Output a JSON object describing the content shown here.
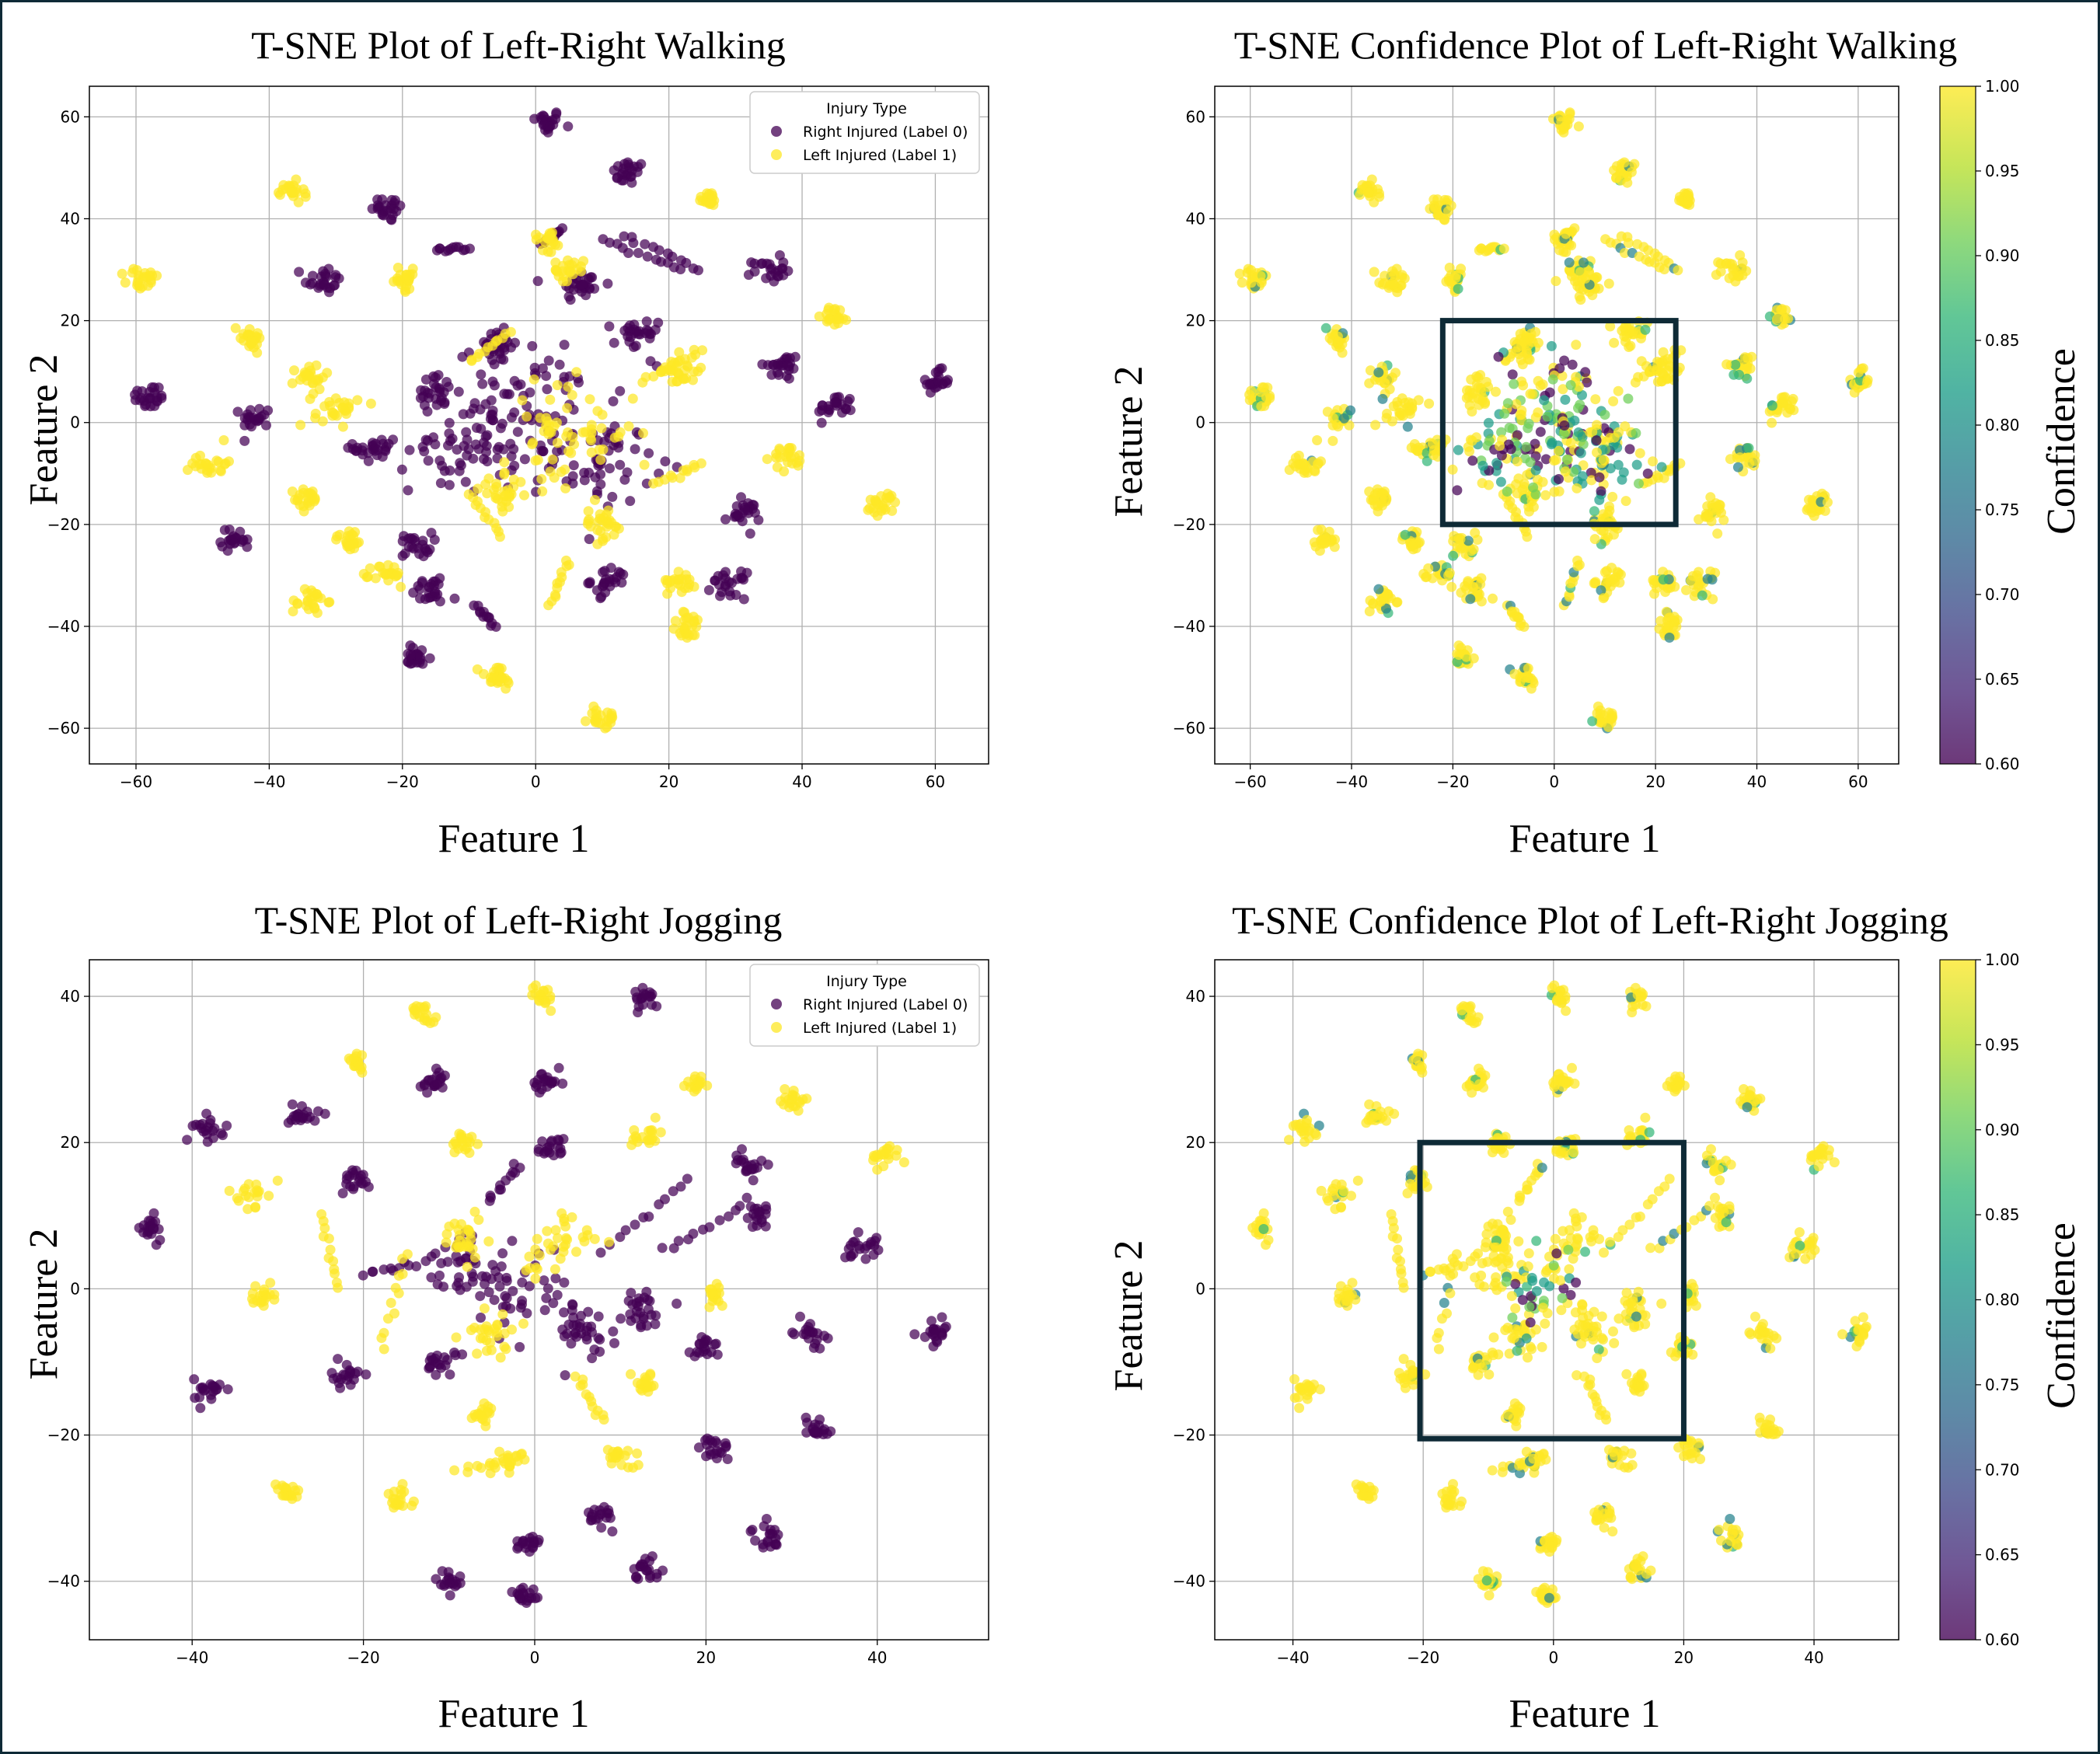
{
  "chart_data": [
    {
      "type": "scatter",
      "title": "T-SNE Plot of Left-Right Walking",
      "xlabel": "Feature 1",
      "ylabel": "Feature 2",
      "xlim": [
        -67,
        68
      ],
      "ylim": [
        -67,
        66
      ],
      "xticks": [
        -60,
        -40,
        -20,
        0,
        20,
        40,
        60
      ],
      "yticks": [
        -60,
        -40,
        -20,
        0,
        20,
        40,
        60
      ],
      "grid": true,
      "legend": {
        "title": "Injury Type",
        "placement": "top-right",
        "entries": [
          {
            "label": "Right Injured (Label 0)",
            "color": "#440154"
          },
          {
            "label": "Left Injured (Label 1)",
            "color": "#fde725"
          }
        ]
      },
      "series": [
        {
          "label_index": 0,
          "clusters": [
            [
              1.5,
              59,
              2.2
            ],
            [
              14,
              49,
              2.2
            ],
            [
              -22,
              42,
              2.4
            ],
            [
              -32,
              28,
              2.5
            ],
            [
              7,
              27,
              3
            ],
            [
              37,
              11,
              2.5
            ],
            [
              -58,
              5,
              2.4
            ],
            [
              -42,
              1,
              2
            ],
            [
              45,
              3,
              2.4
            ],
            [
              60,
              8,
              2
            ],
            [
              35,
              30,
              2.2
            ],
            [
              -24,
              -5,
              3
            ],
            [
              -15,
              6,
              3
            ],
            [
              -45,
              -23,
              2
            ],
            [
              -18,
              -24,
              2.2
            ],
            [
              31,
              -18,
              2.4
            ],
            [
              -16,
              -33,
              2.5
            ],
            [
              11,
              -31,
              2.5
            ],
            [
              29,
              -32,
              2.3
            ],
            [
              -18,
              -46,
              2.2
            ],
            [
              0,
              3,
              11
            ],
            [
              -10,
              -5,
              8
            ],
            [
              10,
              -8,
              7
            ],
            [
              15,
              17,
              3
            ],
            [
              -6,
              15,
              3
            ]
          ],
          "arcs": [
            [
              [
                -15,
                34
              ],
              [
                -10,
                34
              ]
            ],
            [
              [
                10,
                36
              ],
              [
                22,
                30
              ]
            ],
            [
              [
                13,
                37
              ],
              [
                25,
                30
              ]
            ],
            [
              [
                -9,
                -36
              ],
              [
                -6,
                -40
              ]
            ],
            [
              [
                1,
                35
              ],
              [
                4,
                38
              ]
            ]
          ]
        },
        {
          "label_index": 1,
          "clusters": [
            [
              -37,
              45,
              2
            ],
            [
              -59,
              28,
              2.2
            ],
            [
              -43,
              17,
              2.3
            ],
            [
              -34,
              9,
              2.2
            ],
            [
              -49,
              -8,
              2.4
            ],
            [
              -34,
              -15,
              2
            ],
            [
              -28,
              -23,
              2
            ],
            [
              -34,
              -35,
              2.4
            ],
            [
              -22,
              -30,
              2.2
            ],
            [
              10,
              -58,
              2
            ],
            [
              -6,
              -50,
              2.5
            ],
            [
              23,
              -40,
              2.5
            ],
            [
              45,
              21,
              1.8
            ],
            [
              38,
              -7,
              2.2
            ],
            [
              52,
              -16,
              2.2
            ],
            [
              26,
              44,
              1.5
            ],
            [
              22,
              -31,
              2
            ],
            [
              -20,
              28,
              2
            ],
            [
              2,
              36,
              2
            ],
            [
              5,
              30,
              2
            ],
            [
              -30,
              3,
              3
            ],
            [
              22,
              10,
              3
            ],
            [
              5,
              -2,
              9
            ],
            [
              -5,
              -14,
              3
            ],
            [
              10,
              -20,
              3
            ]
          ],
          "arcs": [
            [
              [
                2,
                -36
              ],
              [
                5,
                -27
              ]
            ],
            [
              [
                -10,
                -14
              ],
              [
                -5,
                -22
              ]
            ],
            [
              [
                16,
                8
              ],
              [
                25,
                14
              ]
            ],
            [
              [
                -10,
                12
              ],
              [
                -4,
                18
              ]
            ],
            [
              [
                18,
                -12
              ],
              [
                25,
                -8
              ]
            ]
          ]
        }
      ]
    },
    {
      "type": "scatter",
      "title": "T-SNE Confidence Plot of Left-Right Walking",
      "xlabel": "Feature 1",
      "ylabel": "Feature 2",
      "xlim": [
        -67,
        68
      ],
      "ylim": [
        -67,
        66
      ],
      "xticks": [
        -60,
        -40,
        -20,
        0,
        20,
        40,
        60
      ],
      "yticks": [
        -60,
        -40,
        -20,
        0,
        20,
        40,
        60
      ],
      "grid": true,
      "colorbar": {
        "label": "Confidence",
        "range": [
          0.6,
          1.0
        ],
        "ticks": [
          "1.00",
          "0.95",
          "0.90",
          "0.85",
          "0.80",
          "0.75",
          "0.70",
          "0.65",
          "0.60"
        ]
      },
      "highlight_box": {
        "x": [
          -22,
          24
        ],
        "y": [
          -20,
          20
        ]
      }
    },
    {
      "type": "scatter",
      "title": "T-SNE Plot of Left-Right Jogging",
      "xlabel": "Feature 1",
      "ylabel": "Feature 2",
      "xlim": [
        -52,
        53
      ],
      "ylim": [
        -48,
        45
      ],
      "xticks": [
        -40,
        -20,
        0,
        20,
        40
      ],
      "yticks": [
        -40,
        -20,
        0,
        20,
        40
      ],
      "grid": true,
      "legend": {
        "title": "Injury Type",
        "placement": "top-right",
        "entries": [
          {
            "label": "Right Injured (Label 0)",
            "color": "#440154"
          },
          {
            "label": "Left Injured (Label 1)",
            "color": "#fde725"
          }
        ]
      },
      "series": [
        {
          "label_index": 0,
          "clusters": [
            [
              -45,
              8,
              1.6
            ],
            [
              -38,
              22,
              1.6
            ],
            [
              -27,
              24,
              1.6
            ],
            [
              -12,
              28,
              1.6
            ],
            [
              1.5,
              28,
              1.6
            ],
            [
              13,
              40,
              1.5
            ],
            [
              -21,
              15,
              1.6
            ],
            [
              2,
              19,
              1.5
            ],
            [
              25,
              17,
              1.6
            ],
            [
              26,
              10,
              1.4
            ],
            [
              38,
              6,
              1.8
            ],
            [
              47,
              -6,
              1.6
            ],
            [
              32,
              -6,
              1.6
            ],
            [
              33,
              -19,
              1.6
            ],
            [
              21,
              -22,
              1.6
            ],
            [
              27,
              -34,
              1.6
            ],
            [
              13,
              -38,
              1.6
            ],
            [
              -10,
              -40,
              1.5
            ],
            [
              -1,
              -42,
              1.5
            ],
            [
              -1,
              -35,
              1.5
            ],
            [
              8,
              -31,
              1.5
            ],
            [
              -38,
              -14,
              1.6
            ],
            [
              -22,
              -12,
              1.6
            ],
            [
              -11,
              -10,
              1.6
            ],
            [
              20,
              -8,
              1.5
            ],
            [
              -2,
              0,
              5
            ],
            [
              -8,
              4,
              4
            ],
            [
              5,
              -6,
              4
            ],
            [
              12,
              -3,
              3
            ]
          ],
          "arcs": [
            [
              [
                8,
                5
              ],
              [
                18,
                15
              ]
            ],
            [
              [
                15,
                5
              ],
              [
                25,
                12
              ]
            ],
            [
              [
                -20,
                2
              ],
              [
                -12,
                4
              ]
            ],
            [
              [
                -5,
                12
              ],
              [
                -2,
                17
              ]
            ]
          ]
        },
        {
          "label_index": 1,
          "clusters": [
            [
              -13,
              38,
              1.4
            ],
            [
              1,
              40,
              1.4
            ],
            [
              19,
              28,
              1.2
            ],
            [
              30,
              26,
              1.5
            ],
            [
              41,
              18,
              1.5
            ],
            [
              -21,
              31,
              1.4
            ],
            [
              -8,
              20,
              1.6
            ],
            [
              13,
              21,
              1.5
            ],
            [
              -33,
              13,
              1.5
            ],
            [
              -32,
              -1,
              1.5
            ],
            [
              -16,
              -29,
              1.5
            ],
            [
              -29,
              -28,
              1.5
            ],
            [
              21,
              -1,
              1.5
            ],
            [
              13,
              -13,
              1.5
            ],
            [
              10,
              -23,
              1.5
            ],
            [
              -6,
              -17,
              1.3
            ],
            [
              -3,
              -24,
              1.3
            ],
            [
              2,
              6,
              4
            ],
            [
              -8,
              7,
              3
            ],
            [
              -5,
              -6,
              3
            ]
          ],
          "arcs": [
            [
              [
                -25,
                10
              ],
              [
                -23,
                0
              ]
            ],
            [
              [
                -9,
                -25
              ],
              [
                -1,
                -23
              ]
            ],
            [
              [
                -15,
                5
              ],
              [
                -18,
                -8
              ]
            ],
            [
              [
                5,
                -12
              ],
              [
                8,
                -18
              ]
            ]
          ]
        }
      ]
    },
    {
      "type": "scatter",
      "title": "T-SNE Confidence Plot of Left-Right Jogging",
      "xlabel": "Feature 1",
      "ylabel": "Feature 2",
      "xlim": [
        -52,
        53
      ],
      "ylim": [
        -48,
        45
      ],
      "xticks": [
        -40,
        -20,
        0,
        20,
        40
      ],
      "yticks": [
        -40,
        -20,
        0,
        20,
        40
      ],
      "grid": true,
      "colorbar": {
        "label": "Confidence",
        "range": [
          0.6,
          1.0
        ],
        "ticks": [
          "1.00",
          "0.95",
          "0.90",
          "0.85",
          "0.80",
          "0.75",
          "0.70",
          "0.65",
          "0.60"
        ]
      },
      "highlight_box": {
        "x": [
          -20.5,
          20
        ],
        "y": [
          -20.5,
          20
        ]
      }
    }
  ],
  "colors": {
    "label0": "#440154",
    "label1": "#fde725",
    "viridis": [
      "#440154",
      "#482878",
      "#3e4989",
      "#31688e",
      "#26828e",
      "#1f9e89",
      "#35b779",
      "#6ece58",
      "#b5de2b",
      "#fde725"
    ],
    "frame": "#0e2a36"
  }
}
